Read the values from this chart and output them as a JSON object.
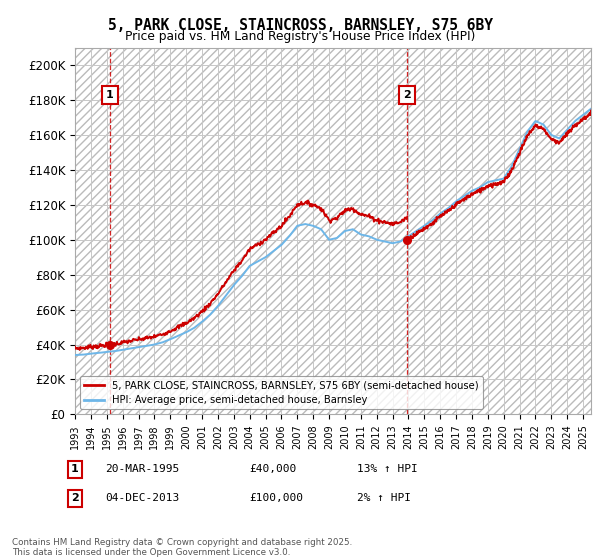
{
  "title": "5, PARK CLOSE, STAINCROSS, BARNSLEY, S75 6BY",
  "subtitle": "Price paid vs. HM Land Registry's House Price Index (HPI)",
  "legend_line1": "5, PARK CLOSE, STAINCROSS, BARNSLEY, S75 6BY (semi-detached house)",
  "legend_line2": "HPI: Average price, semi-detached house, Barnsley",
  "footer": "Contains HM Land Registry data © Crown copyright and database right 2025.\nThis data is licensed under the Open Government Licence v3.0.",
  "annotation1": {
    "num": "1",
    "date": "20-MAR-1995",
    "price": "£40,000",
    "hpi": "13% ↑ HPI",
    "year": 1995.2
  },
  "annotation2": {
    "num": "2",
    "date": "04-DEC-2013",
    "price": "£100,000",
    "hpi": "2% ↑ HPI",
    "year": 2013.92
  },
  "sale1_price": 40000,
  "sale2_price": 100000,
  "ylim": [
    0,
    210000
  ],
  "xlim_start": 1993,
  "xlim_end": 2025.5,
  "hpi_color": "#6db6e8",
  "price_color": "#cc0000",
  "grid_color": "#c8c8c8",
  "annotation_color": "#cc0000",
  "years_hpi": [
    1993.0,
    1993.5,
    1994.0,
    1994.5,
    1995.0,
    1995.5,
    1996.0,
    1996.5,
    1997.0,
    1997.5,
    1998.0,
    1998.5,
    1999.0,
    1999.5,
    2000.0,
    2000.5,
    2001.0,
    2001.5,
    2002.0,
    2002.5,
    2003.0,
    2003.5,
    2004.0,
    2004.5,
    2005.0,
    2005.5,
    2006.0,
    2006.5,
    2007.0,
    2007.5,
    2008.0,
    2008.5,
    2009.0,
    2009.5,
    2010.0,
    2010.5,
    2011.0,
    2011.5,
    2012.0,
    2012.5,
    2013.0,
    2013.5,
    2014.0,
    2014.5,
    2015.0,
    2015.5,
    2016.0,
    2016.5,
    2017.0,
    2017.5,
    2018.0,
    2018.5,
    2019.0,
    2019.5,
    2020.0,
    2020.5,
    2021.0,
    2021.5,
    2022.0,
    2022.5,
    2023.0,
    2023.5,
    2024.0,
    2024.5,
    2025.5
  ],
  "vals_hpi": [
    34000,
    34200,
    34800,
    35200,
    35800,
    36200,
    37000,
    37800,
    38500,
    39200,
    40000,
    41200,
    43000,
    45000,
    47000,
    49500,
    53000,
    57000,
    62000,
    68000,
    74000,
    79000,
    85000,
    87500,
    90000,
    93500,
    97000,
    102000,
    108000,
    109000,
    108000,
    106000,
    100000,
    101000,
    105000,
    106000,
    103000,
    102000,
    100000,
    99000,
    98000,
    99000,
    102000,
    105000,
    108000,
    111000,
    115000,
    118000,
    122000,
    125000,
    128000,
    130000,
    133000,
    134000,
    135000,
    142000,
    152000,
    162000,
    168000,
    166000,
    160000,
    158000,
    163000,
    168000,
    175000
  ]
}
